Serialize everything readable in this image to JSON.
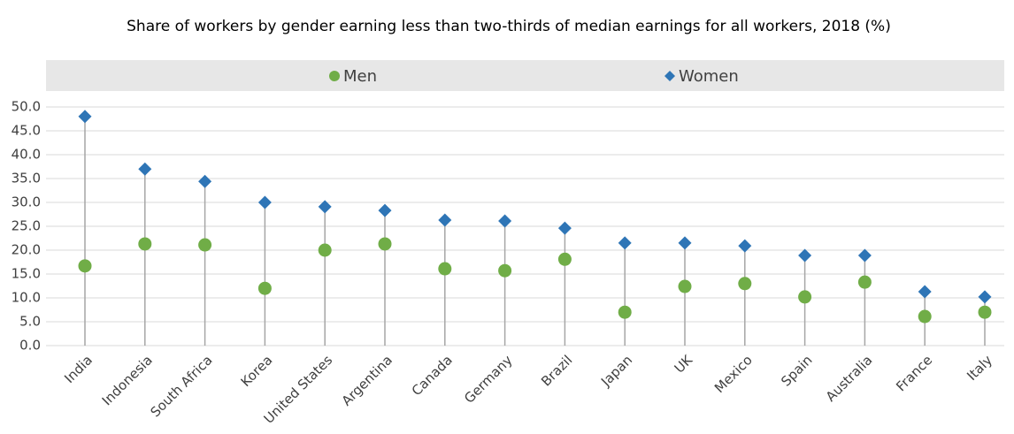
{
  "chart_data": {
    "type": "dot",
    "title": "Share of workers by gender earning less than two-thirds of median earnings for all workers, 2018 (%)",
    "categories": [
      "India",
      "Indonesia",
      "South Africa",
      "Korea",
      "United States",
      "Argentina",
      "Canada",
      "Germany",
      "Brazil",
      "Japan",
      "UK",
      "Mexico",
      "Spain",
      "Australia",
      "France",
      "Italy"
    ],
    "series": [
      {
        "name": "Men",
        "color": "#70ad47",
        "marker": "circle",
        "values": [
          16.7,
          21.3,
          21.1,
          12.0,
          20.0,
          21.3,
          16.1,
          15.7,
          18.1,
          7.0,
          12.4,
          13.0,
          10.2,
          13.3,
          6.1,
          7.0
        ]
      },
      {
        "name": "Women",
        "color": "#2e75b6",
        "marker": "diamond",
        "values": [
          48.0,
          37.0,
          34.4,
          30.0,
          29.1,
          28.3,
          26.3,
          26.1,
          24.6,
          21.5,
          21.5,
          20.9,
          18.9,
          18.9,
          11.3,
          10.2
        ]
      }
    ],
    "ylim": [
      0,
      50
    ],
    "yticks": [
      {
        "value": 0,
        "label": "0.0"
      },
      {
        "value": 5,
        "label": "5.0"
      },
      {
        "value": 10,
        "label": "10.0"
      },
      {
        "value": 15,
        "label": "15.0"
      },
      {
        "value": 20,
        "label": "20.0"
      },
      {
        "value": 25,
        "label": "25.0"
      },
      {
        "value": 30,
        "label": "30.0"
      },
      {
        "value": 35,
        "label": "35.0"
      },
      {
        "value": 40,
        "label": "40.0"
      },
      {
        "value": 45,
        "label": "45.0"
      },
      {
        "value": 50,
        "label": "50.0"
      }
    ],
    "grid": true,
    "legend": "top"
  }
}
